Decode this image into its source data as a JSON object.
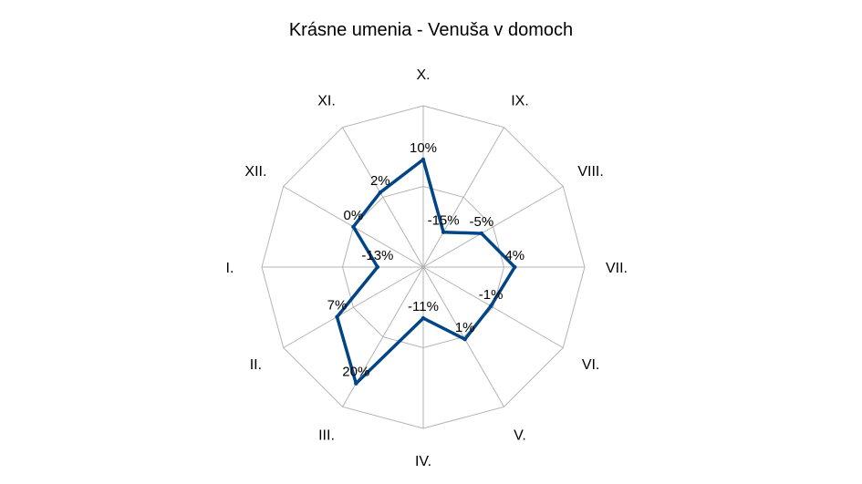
{
  "chart_data": {
    "type": "radar",
    "title": "Krásne umenia - Venuša v domoch",
    "categories": [
      "X.",
      "IX.",
      "VIII.",
      "VII.",
      "VI.",
      "V.",
      "IV.",
      "III.",
      "II.",
      "I.",
      "XII.",
      "XI."
    ],
    "series": [
      {
        "values": [
          10,
          -15,
          -5,
          4,
          -1,
          1,
          -11,
          20,
          7,
          -13,
          0,
          2
        ],
        "labels": [
          "10%",
          "-15%",
          "-5%",
          "4%",
          "-1%",
          "1%",
          "-11%",
          "20%",
          "7%",
          "-13%",
          "0%",
          "2%"
        ],
        "color": "#004586"
      }
    ],
    "rlim": [
      -30,
      30
    ],
    "grid": true,
    "grid_color": "#b3b3b3"
  }
}
